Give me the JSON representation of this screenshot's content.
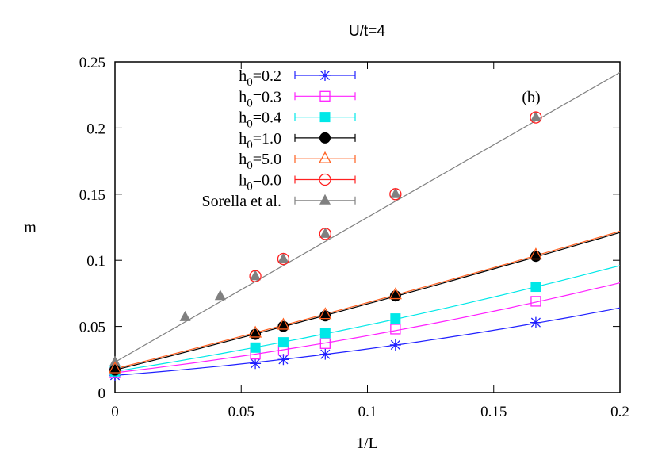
{
  "chart_data": {
    "type": "scatter",
    "title": "U/t=4",
    "xlabel": "1/L",
    "ylabel": "m",
    "annotation": "(b)",
    "xlim": [
      0,
      0.2
    ],
    "ylim": [
      0,
      0.25
    ],
    "xticks": [
      "0",
      "0.05",
      "0.1",
      "0.15",
      "0.2"
    ],
    "yticks": [
      "0",
      "0.05",
      "0.1",
      "0.15",
      "0.2",
      "0.25"
    ],
    "grid": false,
    "legend_position": "top-left",
    "series": [
      {
        "name": "h",
        "sub": "0",
        "suffix": "=0.2",
        "color": "#2020ff",
        "marker": "star",
        "x": [
          0,
          0.0556,
          0.0667,
          0.0833,
          0.1111,
          0.1667
        ],
        "y": [
          0.013,
          0.022,
          0.025,
          0.029,
          0.036,
          0.053
        ],
        "fit": {
          "x": [
            0,
            0.1,
            0.2
          ],
          "y": [
            0.013,
            0.033,
            0.064
          ]
        }
      },
      {
        "name": "h",
        "sub": "0",
        "suffix": "=0.3",
        "color": "#ff20ff",
        "marker": "open-square",
        "x": [
          0,
          0.0556,
          0.0667,
          0.0833,
          0.1111,
          0.1667
        ],
        "y": [
          0.015,
          0.029,
          0.032,
          0.037,
          0.048,
          0.069
        ],
        "fit": {
          "x": [
            0,
            0.1,
            0.2
          ],
          "y": [
            0.015,
            0.043,
            0.083
          ]
        }
      },
      {
        "name": "h",
        "sub": "0",
        "suffix": "=0.4",
        "color": "#00e8e8",
        "marker": "filled-square",
        "x": [
          0,
          0.0556,
          0.0667,
          0.0833,
          0.1111,
          0.1667
        ],
        "y": [
          0.016,
          0.034,
          0.038,
          0.045,
          0.056,
          0.08
        ],
        "fit": {
          "x": [
            0,
            0.1,
            0.2
          ],
          "y": [
            0.016,
            0.051,
            0.096
          ]
        }
      },
      {
        "name": "h",
        "sub": "0",
        "suffix": "=1.0",
        "color": "#000000",
        "marker": "filled-circle",
        "x": [
          0,
          0.0556,
          0.0667,
          0.0833,
          0.1111,
          0.1667
        ],
        "y": [
          0.017,
          0.044,
          0.05,
          0.058,
          0.073,
          0.103
        ],
        "fit": {
          "x": [
            0,
            0.1,
            0.2
          ],
          "y": [
            0.017,
            0.067,
            0.121
          ]
        }
      },
      {
        "name": "h",
        "sub": "0",
        "suffix": "=5.0",
        "color": "#ff6020",
        "marker": "open-triangle",
        "x": [
          0,
          0.0556,
          0.0667,
          0.0833,
          0.1111,
          0.1667
        ],
        "y": [
          0.018,
          0.045,
          0.051,
          0.059,
          0.074,
          0.104
        ],
        "fit": {
          "x": [
            0,
            0.1,
            0.2
          ],
          "y": [
            0.018,
            0.068,
            0.122
          ]
        }
      },
      {
        "name": "h",
        "sub": "0",
        "suffix": "=0.0",
        "color": "#ff2020",
        "marker": "open-circle",
        "x": [
          0.0556,
          0.0667,
          0.0833,
          0.1111,
          0.1667
        ],
        "y": [
          0.088,
          0.101,
          0.12,
          0.15,
          0.208
        ],
        "fit": null
      },
      {
        "name": "Sorella et al.",
        "sub": "",
        "suffix": "",
        "color": "#808080",
        "marker": "filled-triangle",
        "x": [
          0,
          0.0278,
          0.0417,
          0.0556,
          0.0667,
          0.0833,
          0.1111,
          0.1667
        ],
        "y": [
          0.023,
          0.057,
          0.073,
          0.088,
          0.101,
          0.12,
          0.15,
          0.208
        ],
        "fit": {
          "x": [
            0,
            0.2
          ],
          "y": [
            0.023,
            0.242
          ]
        }
      }
    ]
  }
}
